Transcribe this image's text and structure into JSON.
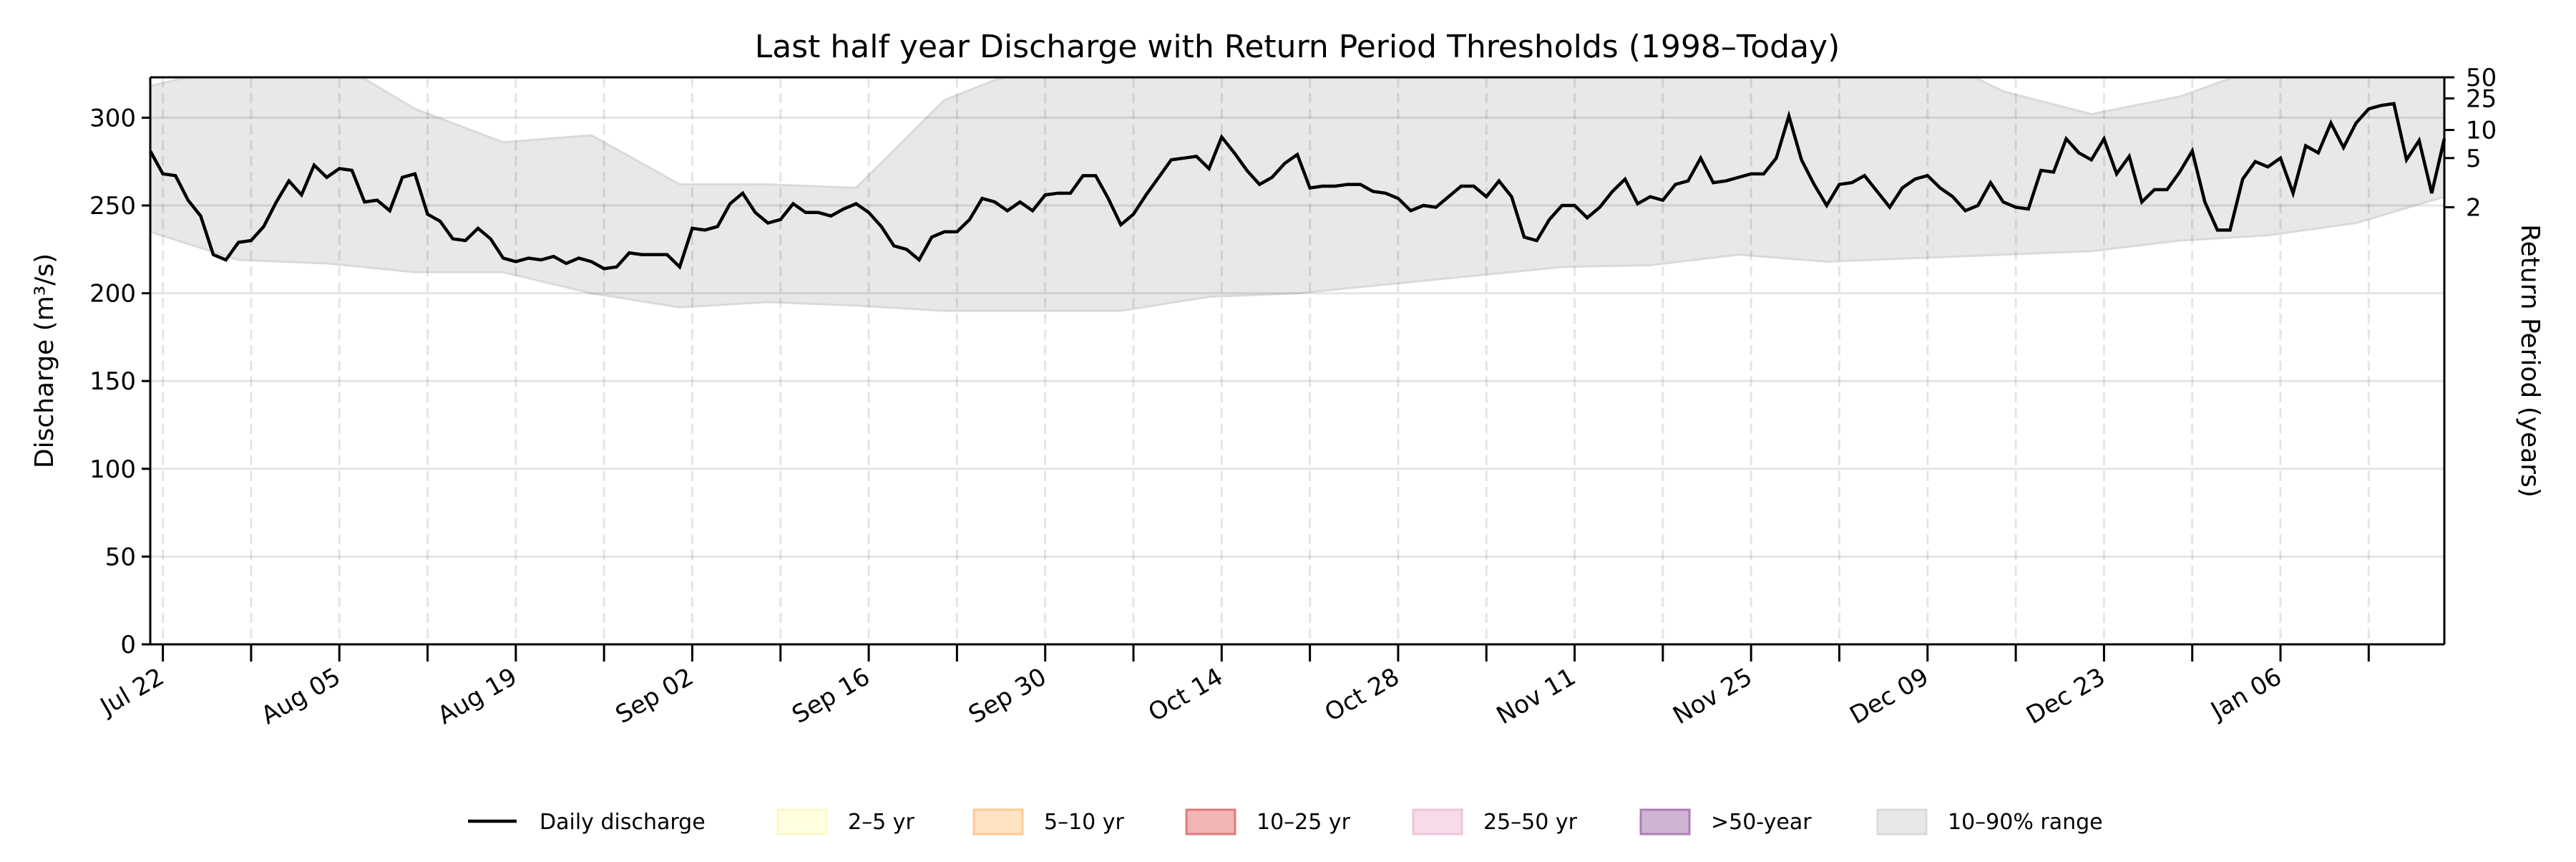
{
  "chart_data": {
    "type": "line",
    "title": "Last half year Discharge with Return Period Thresholds (1998–Today)",
    "xlabel": "",
    "ylabel": "Discharge (m³/s)",
    "y2label": "Return Period (years)",
    "ylim": [
      0,
      323
    ],
    "yticks": [
      0,
      50,
      100,
      150,
      200,
      250,
      300
    ],
    "start_date": "Jul 21",
    "xtick_labels": [
      "Jul 22",
      "",
      "Aug 05",
      "",
      "Aug 19",
      "",
      "Sep 02",
      "",
      "Sep 16",
      "",
      "Sep 30",
      "",
      "Oct 14",
      "",
      "Oct 28",
      "",
      "Nov 11",
      "",
      "Nov 25",
      "",
      "Dec 09",
      "",
      "Dec 23",
      "",
      "Jan 06",
      ""
    ],
    "xtick_day_index_start": 1,
    "xtick_step_days": 7,
    "grid": true,
    "return_period_ticks": [
      {
        "label": "2",
        "value": 249
      },
      {
        "label": "5",
        "value": 277
      },
      {
        "label": "10",
        "value": 293
      },
      {
        "label": "25",
        "value": 311
      },
      {
        "label": "50",
        "value": 323
      }
    ],
    "series": [
      {
        "name": "Daily discharge",
        "color": "#000000",
        "values": [
          281,
          268,
          267,
          253,
          244,
          222,
          219,
          229,
          230,
          238,
          252,
          264,
          256,
          273,
          266,
          271,
          270,
          252,
          253,
          247,
          266,
          268,
          245,
          241,
          231,
          230,
          237,
          231,
          220,
          218,
          220,
          219,
          221,
          217,
          220,
          218,
          214,
          215,
          223,
          222,
          222,
          222,
          215,
          237,
          236,
          238,
          251,
          257,
          246,
          240,
          242,
          251,
          246,
          246,
          244,
          248,
          251,
          246,
          238,
          227,
          225,
          219,
          232,
          235,
          235,
          242,
          254,
          252,
          247,
          252,
          247,
          256,
          257,
          257,
          267,
          267,
          254,
          239,
          245,
          256,
          266,
          276,
          277,
          278,
          271,
          289,
          280,
          270,
          262,
          266,
          274,
          279,
          260,
          261,
          261,
          262,
          262,
          258,
          257,
          254,
          247,
          250,
          249,
          255,
          261,
          261,
          255,
          264,
          255,
          232,
          230,
          242,
          250,
          250,
          243,
          249,
          258,
          265,
          251,
          255,
          253,
          262,
          264,
          277,
          263,
          264,
          266,
          268,
          268,
          277,
          301,
          276,
          262,
          250,
          262,
          263,
          267,
          258,
          249,
          260,
          265,
          267,
          260,
          255,
          247,
          250,
          263,
          252,
          249,
          248,
          270,
          269,
          288,
          280,
          276,
          288,
          268,
          278,
          252,
          259,
          259,
          269,
          281,
          252,
          236,
          236,
          265,
          275,
          272,
          277,
          257,
          284,
          280,
          297,
          283,
          297,
          305,
          307,
          308,
          276,
          287,
          257,
          288
        ]
      }
    ],
    "range_band": {
      "name": "10–90% range",
      "step_days": 7,
      "upper": [
        318,
        330,
        335,
        305,
        286,
        290,
        262,
        262,
        260,
        310,
        330,
        340,
        340,
        340,
        340,
        340,
        340,
        340,
        340,
        340,
        340,
        315,
        302,
        312,
        330,
        340,
        330
      ],
      "lower": [
        235,
        219,
        217,
        212,
        212,
        200,
        192,
        195,
        193,
        190,
        190,
        190,
        198,
        200,
        205,
        210,
        215,
        216,
        222,
        218,
        220,
        222,
        224,
        230,
        233,
        240,
        255
      ]
    },
    "legend": {
      "placement": "bottom-center",
      "entries": [
        {
          "label": "Daily discharge",
          "kind": "line",
          "color": "#000000"
        },
        {
          "label": "2–5 yr",
          "kind": "patch",
          "color": "#ffffe0",
          "edge": "#fbf7c8"
        },
        {
          "label": "5–10 yr",
          "kind": "patch",
          "color": "#ffe4c4",
          "edge": "#fccb95"
        },
        {
          "label": "10–25 yr",
          "kind": "patch",
          "color": "#f2b5b5",
          "edge": "#e07b7b"
        },
        {
          "label": "25–50 yr",
          "kind": "patch",
          "color": "#f6dce9",
          "edge": "#efc3d9"
        },
        {
          "label": ">50-year",
          "kind": "patch",
          "color": "#d0b4d4",
          "edge": "#b07cb8"
        },
        {
          "label": "10–90% range",
          "kind": "patch",
          "color": "#e8e8e8",
          "edge": "#dadada"
        }
      ]
    }
  }
}
